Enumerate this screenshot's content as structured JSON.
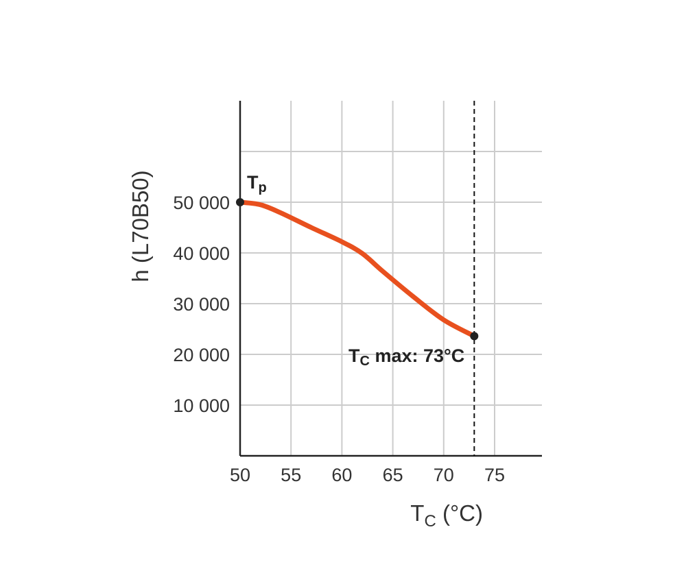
{
  "chart_data": {
    "type": "line",
    "title": "",
    "xlabel": "T",
    "xlabel_sub": "C",
    "xlabel_unit": " (°C)",
    "ylabel": "h (L70B50)",
    "xlim": [
      50,
      79.5
    ],
    "ylim": [
      0,
      60000
    ],
    "x_ticks": [
      50,
      55,
      60,
      65,
      70,
      75
    ],
    "x_tick_labels": [
      "50",
      "55",
      "60",
      "65",
      "70",
      "75"
    ],
    "y_ticks": [
      10000,
      20000,
      30000,
      40000,
      50000
    ],
    "y_tick_labels": [
      "10 000",
      "20 000",
      "30 000",
      "40 000",
      "50 000"
    ],
    "grid": true,
    "series": [
      {
        "color": "#e8501e",
        "x": [
          50,
          52,
          54,
          57,
          60,
          62,
          64,
          67,
          70,
          73
        ],
        "y": [
          50000,
          49500,
          47900,
          45000,
          42200,
          39900,
          36400,
          31400,
          26800,
          23600
        ]
      }
    ],
    "annotations": {
      "tp_label": "T",
      "tp_sub": "p",
      "tp_x": 50,
      "tp_y": 50000,
      "tcmax_label": "T",
      "tcmax_sub": "C",
      "tcmax_text": " max: 73°C",
      "tcmax_x": 73,
      "tcmax_y": 23600
    },
    "colors": {
      "line": "#e8501e",
      "grid": "#cccccc",
      "axis": "#222222",
      "marker": "#222222"
    }
  }
}
